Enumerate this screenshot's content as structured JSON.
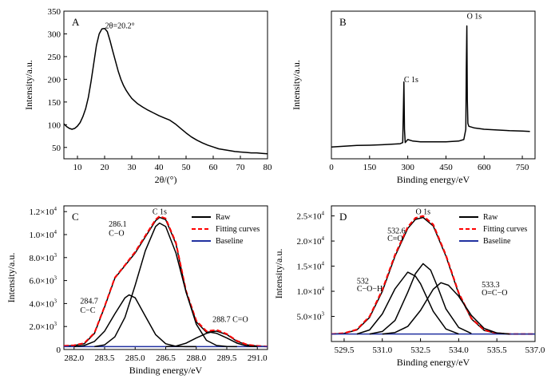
{
  "chart_data": [
    {
      "letter": "A",
      "type": "line",
      "xlabel": "2θ/(°)",
      "ylabel": "Intensity/a.u.",
      "xlim": [
        5,
        80
      ],
      "ylim": [
        25,
        350
      ],
      "xticks": [
        "10",
        "20",
        "30",
        "40",
        "50",
        "60",
        "70",
        "80"
      ],
      "yticks": [
        "50",
        "100",
        "150",
        "200",
        "250",
        "300",
        "350"
      ],
      "annotations": [
        {
          "text": "2θ=20.2°",
          "x": 20.2,
          "y": 312
        }
      ],
      "series": [
        {
          "color": "#000000",
          "x": [
            5,
            6,
            7,
            8,
            9,
            10,
            11,
            12,
            13,
            14,
            15,
            16,
            17,
            18,
            19,
            20,
            21,
            22,
            23,
            24,
            25,
            26,
            27,
            28,
            29,
            30,
            32,
            34,
            36,
            38,
            40,
            42,
            44,
            46,
            48,
            50,
            52,
            54,
            56,
            58,
            60,
            62,
            64,
            66,
            68,
            70,
            72,
            74,
            76,
            78,
            80
          ],
          "y": [
            102,
            96,
            92,
            90,
            92,
            97,
            105,
            118,
            135,
            160,
            195,
            235,
            275,
            300,
            311,
            312,
            305,
            285,
            262,
            240,
            218,
            200,
            186,
            175,
            166,
            158,
            147,
            139,
            132,
            126,
            120,
            115,
            110,
            102,
            92,
            82,
            73,
            66,
            60,
            55,
            51,
            47,
            45,
            43,
            41,
            40,
            39,
            38,
            38,
            37,
            36
          ]
        }
      ]
    },
    {
      "letter": "B",
      "type": "line",
      "xlabel": "Binding energy/eV",
      "ylabel": "Intensity/a.u.",
      "xlim": [
        0,
        800
      ],
      "ylim": [
        0,
        100
      ],
      "xticks": [
        "0",
        "150",
        "300",
        "450",
        "600",
        "750"
      ],
      "yticks": [],
      "annotations": [
        {
          "text": "C 1s",
          "x": 285,
          "y": 52
        },
        {
          "text": "O 1s",
          "x": 532,
          "y": 95
        }
      ],
      "series": [
        {
          "color": "#000000",
          "x": [
            0,
            50,
            100,
            150,
            200,
            250,
            270,
            280,
            283,
            285,
            287,
            290,
            300,
            320,
            350,
            400,
            450,
            500,
            520,
            528,
            530,
            532,
            534,
            536,
            540,
            560,
            600,
            650,
            700,
            750,
            780
          ],
          "y": [
            8,
            8.5,
            9,
            9.2,
            9.5,
            10,
            10.2,
            11,
            35,
            52,
            20,
            11,
            13,
            12,
            11.5,
            11.5,
            11.5,
            12,
            13,
            20,
            60,
            90,
            40,
            24,
            22,
            21,
            20,
            19.5,
            19,
            18.8,
            18.5
          ]
        }
      ]
    },
    {
      "letter": "C",
      "type": "line",
      "title": "C 1s",
      "xlabel": "Binding energy/eV",
      "ylabel": "Intensity/a.u.",
      "xlim": [
        281.5,
        291.5
      ],
      "ylim": [
        0,
        12500
      ],
      "xticks": [
        "282.0",
        "283.5",
        "285.0",
        "286.5",
        "288.0",
        "289.5",
        "291.0"
      ],
      "yticks": [
        "0",
        "2.0×10",
        "4.0×10",
        "6.0×10",
        "8.0×10",
        "1.0×10",
        "1.2×10"
      ],
      "ytick_exp": [
        "",
        "3",
        "3",
        "3",
        "3",
        "4",
        "4"
      ],
      "annotations": [
        {
          "text": "286.1",
          "x": 283.7,
          "y": 10700
        },
        {
          "text": "C−O",
          "x": 283.7,
          "y": 9900
        },
        {
          "text": "284.7",
          "x": 282.3,
          "y": 4000
        },
        {
          "text": "C−C",
          "x": 282.3,
          "y": 3200
        },
        {
          "text": "288.7 C=O",
          "x": 288.8,
          "y": 2400
        }
      ],
      "legend": {
        "position": "top-right",
        "entries": [
          "Raw",
          "Fitting curves",
          "Baseline"
        ]
      },
      "series": [
        {
          "name": "Raw",
          "color": "#000000",
          "x": [
            281.5,
            282,
            282.5,
            283,
            283.5,
            284,
            284.5,
            285,
            285.5,
            286,
            286.2,
            286.5,
            287,
            287.5,
            288,
            288.5,
            289,
            289.5,
            290,
            290.5,
            291,
            291.5
          ],
          "y": [
            300,
            350,
            500,
            1400,
            3700,
            6200,
            7300,
            8400,
            9800,
            11200,
            11500,
            11300,
            9200,
            5000,
            2400,
            1500,
            1600,
            1300,
            700,
            400,
            300,
            250
          ]
        },
        {
          "name": "Fitting curves",
          "color": "#ff0000",
          "x": [
            281.5,
            282,
            282.5,
            283,
            283.5,
            284,
            284.5,
            285,
            285.5,
            286,
            286.2,
            286.5,
            287,
            287.5,
            288,
            288.5,
            289,
            289.5,
            290,
            290.5,
            291,
            291.5
          ],
          "y": [
            320,
            370,
            550,
            1450,
            3750,
            6250,
            7350,
            8500,
            9900,
            11300,
            11600,
            11400,
            9300,
            5100,
            2500,
            1600,
            1700,
            1350,
            750,
            420,
            320,
            260
          ]
        },
        {
          "name": "Baseline",
          "color": "#2030a0",
          "x": [
            281.5,
            291.5
          ],
          "y": [
            250,
            250
          ]
        },
        {
          "color": "#000000",
          "peak": "284.7",
          "x": [
            282,
            282.5,
            283,
            283.5,
            284,
            284.5,
            284.7,
            285,
            285.5,
            286,
            286.5,
            287,
            287.5,
            288
          ],
          "y": [
            250,
            350,
            700,
            1600,
            3100,
            4500,
            4750,
            4500,
            2900,
            1300,
            500,
            280,
            250,
            250
          ]
        },
        {
          "color": "#000000",
          "peak": "286.1",
          "x": [
            283,
            283.5,
            284,
            284.5,
            285,
            285.5,
            286,
            286.2,
            286.5,
            287,
            287.5,
            288,
            288.5,
            289,
            289.5,
            290
          ],
          "y": [
            250,
            400,
            1100,
            2800,
            5600,
            8600,
            10700,
            11000,
            10700,
            8400,
            5000,
            2200,
            800,
            350,
            260,
            250
          ]
        },
        {
          "color": "#000000",
          "peak": "288.7",
          "x": [
            286.5,
            287,
            287.5,
            288,
            288.5,
            288.7,
            289,
            289.5,
            290,
            290.5,
            291
          ],
          "y": [
            250,
            300,
            550,
            1000,
            1400,
            1500,
            1400,
            1000,
            550,
            300,
            250
          ]
        }
      ]
    },
    {
      "letter": "D",
      "type": "line",
      "title": "O 1s",
      "xlabel": "Binding energy/eV",
      "ylabel": "Intensity/a.u.",
      "xlim": [
        529,
        537
      ],
      "ylim": [
        0,
        27000
      ],
      "xticks": [
        "529.5",
        "531.0",
        "532.5",
        "534.0",
        "535.5",
        "537.0"
      ],
      "yticks": [
        "5.0×10",
        "1.0×10",
        "1.5×10",
        "2.0×10",
        "2.5×10"
      ],
      "ytick_exp": [
        "3",
        "4",
        "4",
        "4",
        "4"
      ],
      "annotations": [
        {
          "text": "532.6",
          "x": 531.2,
          "y": 21500
        },
        {
          "text": "C=O",
          "x": 531.2,
          "y": 20000
        },
        {
          "text": "532",
          "x": 530.0,
          "y": 11500
        },
        {
          "text": "C−O−H",
          "x": 530.0,
          "y": 10000
        },
        {
          "text": "533.3",
          "x": 534.9,
          "y": 10800
        },
        {
          "text": "O=C−O",
          "x": 534.9,
          "y": 9200
        }
      ],
      "legend": {
        "position": "top-right",
        "entries": [
          "Raw",
          "Fitting curves",
          "Baseline"
        ]
      },
      "series": [
        {
          "name": "Raw",
          "color": "#000000",
          "x": [
            529,
            529.5,
            530,
            530.5,
            531,
            531.5,
            532,
            532.3,
            532.6,
            533,
            533.5,
            534,
            534.5,
            535,
            535.5,
            536,
            537
          ],
          "y": [
            1500,
            1600,
            2300,
            4800,
            10000,
            17000,
            22500,
            24300,
            24700,
            23000,
            17000,
            9500,
            4500,
            2200,
            1600,
            1500,
            1500
          ]
        },
        {
          "name": "Fitting curves",
          "color": "#ff0000",
          "x": [
            529,
            529.5,
            530,
            530.5,
            531,
            531.5,
            532,
            532.3,
            532.6,
            533,
            533.5,
            534,
            534.5,
            535,
            535.5,
            536,
            537
          ],
          "y": [
            1500,
            1650,
            2400,
            5000,
            10300,
            17300,
            22800,
            24600,
            25000,
            23300,
            17200,
            9700,
            4600,
            2300,
            1650,
            1500,
            1500
          ]
        },
        {
          "name": "Baseline",
          "color": "#2030a0",
          "x": [
            529,
            537
          ],
          "y": [
            1500,
            1500
          ]
        },
        {
          "color": "#000000",
          "peak": "532",
          "x": [
            530,
            530.5,
            531,
            531.5,
            532,
            532.3,
            532.5,
            533,
            533.5,
            534
          ],
          "y": [
            1500,
            2300,
            5500,
            10500,
            13800,
            13000,
            11500,
            6000,
            2500,
            1500
          ]
        },
        {
          "color": "#000000",
          "peak": "532.6",
          "x": [
            530.5,
            531,
            531.5,
            532,
            532.3,
            532.6,
            532.9,
            533.2,
            533.5,
            534,
            534.5
          ],
          "y": [
            1500,
            2000,
            4200,
            9800,
            13500,
            15500,
            14200,
            10500,
            6500,
            2800,
            1600
          ]
        },
        {
          "color": "#000000",
          "peak": "533.3",
          "x": [
            531,
            531.5,
            532,
            532.5,
            533,
            533.3,
            533.6,
            534,
            534.5,
            535,
            535.5,
            536
          ],
          "y": [
            1500,
            1800,
            3000,
            6200,
            10400,
            11700,
            11200,
            9000,
            5200,
            2600,
            1700,
            1500
          ]
        }
      ]
    }
  ]
}
